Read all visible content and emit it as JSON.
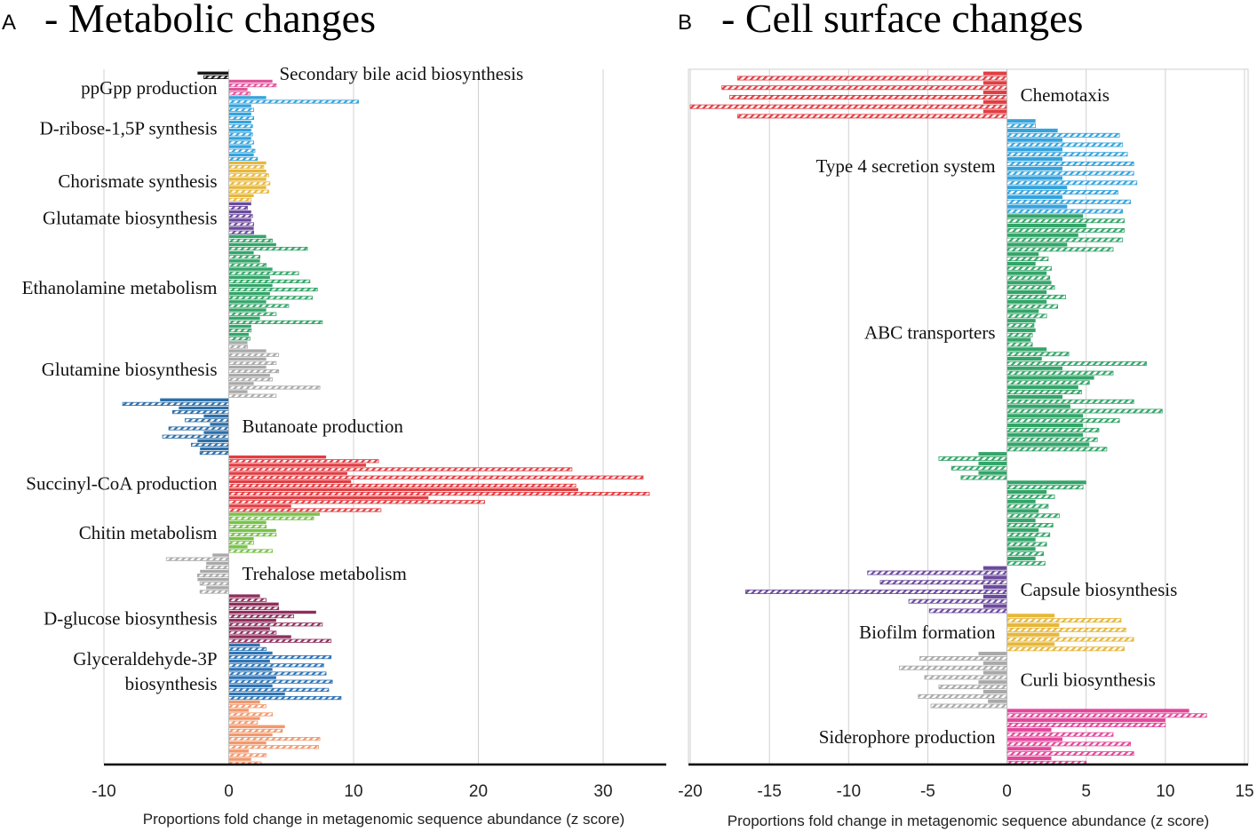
{
  "colors": {
    "black": "#1a1a1a",
    "pink": "#e0559b",
    "sky": "#35a3dc",
    "gold": "#e6b73a",
    "purple": "#6b4a9c",
    "green": "#34a569",
    "gray": "#a9a9a9",
    "steel": "#2e6fa7",
    "red": "#e23d42",
    "lime": "#78c14a",
    "maroon": "#8e2f5c",
    "blue": "#2f74b5",
    "salmon": "#f1986c",
    "pink2": "#e2479a"
  },
  "chart_data": [
    {
      "id": "A",
      "type": "bar",
      "orientation": "horizontal",
      "panel_letter": "A",
      "title": "- Metabolic changes",
      "xlabel": "Proportions  fold change in metagenomic sequence abundance (z score)",
      "xlim": [
        -10,
        35
      ],
      "xticks": [
        -10,
        0,
        10,
        20,
        30
      ],
      "grid": true,
      "groups": [
        {
          "name": "Secondary bile acid biosynthesis",
          "color": "black",
          "label_side": "right",
          "bars": [
            [
              -2.5,
              -2.0
            ]
          ]
        },
        {
          "name": "ppGpp production",
          "color": "pink",
          "label_side": "left",
          "bars": [
            [
              3.5,
              3.8
            ],
            [
              1.5,
              1.7
            ]
          ]
        },
        {
          "name": "D-ribose-1,5P synthesis",
          "color": "sky",
          "label_side": "left",
          "bars": [
            [
              3.0,
              10.4
            ],
            [
              1.8,
              2.0
            ],
            [
              1.8,
              2.0
            ],
            [
              1.8,
              1.9
            ],
            [
              1.8,
              1.9
            ],
            [
              1.8,
              2.0
            ],
            [
              1.8,
              2.1
            ],
            [
              2.0,
              2.3
            ]
          ]
        },
        {
          "name": "Chorismate synthesis",
          "color": "gold",
          "label_side": "left",
          "bars": [
            [
              3.0,
              2.8
            ],
            [
              3.0,
              3.2
            ],
            [
              3.0,
              3.3
            ],
            [
              3.0,
              3.2
            ],
            [
              2.0,
              1.8
            ]
          ]
        },
        {
          "name": "Glutamate biosynthesis",
          "color": "purple",
          "label_side": "left",
          "bars": [
            [
              1.8,
              1.5
            ],
            [
              1.8,
              1.9
            ],
            [
              1.8,
              2.0
            ],
            [
              2.0,
              2.0
            ]
          ]
        },
        {
          "name": "Ethanolamine metabolism",
          "color": "green",
          "label_side": "left",
          "bars": [
            [
              3.0,
              3.5
            ],
            [
              3.8,
              6.3
            ],
            [
              2.0,
              2.5
            ],
            [
              2.5,
              3.0
            ],
            [
              3.5,
              5.6
            ],
            [
              3.3,
              6.5
            ],
            [
              3.5,
              7.1
            ],
            [
              3.3,
              6.7
            ],
            [
              3.0,
              4.8
            ],
            [
              3.0,
              3.8
            ],
            [
              2.5,
              7.5
            ],
            [
              1.8,
              1.8
            ],
            [
              1.6,
              1.7
            ]
          ]
        },
        {
          "name": "Glutamine biosynthesis",
          "color": "gray",
          "label_side": "left",
          "bars": [
            [
              1.5,
              1.5
            ],
            [
              3.0,
              4.0
            ],
            [
              3.0,
              3.8
            ],
            [
              3.0,
              4.0
            ],
            [
              3.3,
              3.5
            ],
            [
              2.0,
              7.3
            ],
            [
              1.5,
              3.8
            ]
          ]
        },
        {
          "name": "Butanoate production",
          "color": "steel",
          "label_side": "right",
          "bars": [
            [
              -5.5,
              -8.5
            ],
            [
              -4.0,
              -4.5
            ],
            [
              -2.0,
              -3.5
            ],
            [
              -1.5,
              -4.8
            ],
            [
              -2.0,
              -5.3
            ],
            [
              -2.5,
              -3.0
            ],
            [
              -2.3,
              -2.3
            ]
          ]
        },
        {
          "name": "Succinyl-CoA production",
          "color": "red",
          "label_side": "left",
          "bars": [
            [
              7.8,
              12.0
            ],
            [
              11.0,
              27.5
            ],
            [
              9.5,
              33.2
            ],
            [
              9.8,
              27.8
            ],
            [
              28.0,
              33.7
            ],
            [
              16.0,
              20.5
            ],
            [
              5.0,
              12.2
            ]
          ]
        },
        {
          "name": "Chitin metabolism",
          "color": "lime",
          "label_side": "left",
          "bars": [
            [
              7.3,
              6.8
            ],
            [
              3.0,
              3.0
            ],
            [
              3.8,
              3.8
            ],
            [
              2.0,
              2.0
            ],
            [
              1.5,
              3.5
            ]
          ]
        },
        {
          "name": "Trehalose metabolism",
          "color": "gray",
          "label_side": "right",
          "bars": [
            [
              -1.3,
              -5.0
            ],
            [
              -1.8,
              -1.8
            ],
            [
              -2.3,
              -2.5
            ],
            [
              -2.5,
              -2.3
            ],
            [
              -1.8,
              -2.3
            ]
          ]
        },
        {
          "name": "D-glucose biosynthesis",
          "color": "maroon",
          "label_side": "left",
          "bars": [
            [
              2.5,
              3.0
            ],
            [
              4.0,
              4.0
            ],
            [
              7.0,
              5.2
            ],
            [
              3.8,
              7.5
            ],
            [
              3.3,
              3.8
            ],
            [
              5.0,
              8.2
            ]
          ]
        },
        {
          "name": "Glyceraldehyde-3P biosynthesis",
          "label_lines": [
            "Glyceraldehyde-3P",
            "biosynthesis"
          ],
          "color": "blue",
          "label_side": "left",
          "bars": [
            [
              2.5,
              3.0
            ],
            [
              3.5,
              8.2
            ],
            [
              3.3,
              7.6
            ],
            [
              3.5,
              7.8
            ],
            [
              3.8,
              8.3
            ],
            [
              3.5,
              8.0
            ],
            [
              4.5,
              9.0
            ]
          ]
        },
        {
          "name": "(unlabeled)",
          "color": "salmon",
          "label_side": "none",
          "bars": [
            [
              2.5,
              3.0
            ],
            [
              1.6,
              3.5
            ],
            [
              2.5,
              2.3
            ],
            [
              4.5,
              4.3
            ],
            [
              3.5,
              7.3
            ],
            [
              3.0,
              7.2
            ],
            [
              1.6,
              3.0
            ],
            [
              1.8,
              2.6
            ]
          ]
        }
      ]
    },
    {
      "id": "B",
      "type": "bar",
      "orientation": "horizontal",
      "panel_letter": "B",
      "title": "- Cell surface changes",
      "xlabel": "Proportions  fold change in metagenomic sequence abundance (z score)",
      "xlim": [
        -20,
        15
      ],
      "xticks": [
        -20,
        -15,
        -10,
        -5,
        0,
        5,
        10,
        15
      ],
      "grid": true,
      "groups": [
        {
          "name": "Chemotaxis",
          "color": "red",
          "label_side": "right",
          "bars": [
            [
              -1.5,
              -17.0
            ],
            [
              -1.5,
              -18.0
            ],
            [
              -1.5,
              -17.5
            ],
            [
              -1.5,
              -20.0
            ],
            [
              -1.5,
              -17.0
            ]
          ]
        },
        {
          "name": "Type 4 secretion system",
          "color": "sky",
          "label_side": "left",
          "bars": [
            [
              1.8,
              1.8
            ],
            [
              3.2,
              7.1
            ],
            [
              3.5,
              7.3
            ],
            [
              3.5,
              7.6
            ],
            [
              3.5,
              8.0
            ],
            [
              3.5,
              8.0
            ],
            [
              3.5,
              8.2
            ],
            [
              3.8,
              7.0
            ],
            [
              3.5,
              7.8
            ],
            [
              3.8,
              7.3
            ]
          ]
        },
        {
          "name": "ABC transporters",
          "color": "green",
          "label_side": "left",
          "bars": [
            [
              4.8,
              7.4
            ],
            [
              5.0,
              7.4
            ],
            [
              4.5,
              7.3
            ],
            [
              3.8,
              6.7
            ],
            [
              2.0,
              2.6
            ],
            [
              1.8,
              2.8
            ],
            [
              2.5,
              2.7
            ],
            [
              2.8,
              3.0
            ],
            [
              2.5,
              3.7
            ],
            [
              2.5,
              3.2
            ],
            [
              2.0,
              2.5
            ],
            [
              1.8,
              1.7
            ],
            [
              1.8,
              1.6
            ],
            [
              1.5,
              1.6
            ],
            [
              2.5,
              3.9
            ],
            [
              2.2,
              8.8
            ],
            [
              3.5,
              6.7
            ],
            [
              5.5,
              5.2
            ],
            [
              4.5,
              4.7
            ],
            [
              3.5,
              8.0
            ],
            [
              4.0,
              9.8
            ],
            [
              4.8,
              7.1
            ],
            [
              4.8,
              5.8
            ],
            [
              4.8,
              5.7
            ],
            [
              5.2,
              6.3
            ]
          ]
        },
        {
          "name": "(unlabeled)",
          "color": "green",
          "label_side": "none",
          "bars": [
            [
              -1.8,
              -4.3
            ],
            [
              -1.8,
              -3.5
            ],
            [
              -1.8,
              -2.9
            ]
          ]
        },
        {
          "name": "(unlabeled)",
          "color": "green",
          "label_side": "none",
          "bars": [
            [
              5.0,
              4.8
            ],
            [
              2.5,
              3.0
            ],
            [
              1.8,
              2.6
            ],
            [
              2.0,
              3.3
            ],
            [
              1.8,
              2.9
            ],
            [
              2.0,
              2.7
            ],
            [
              1.8,
              2.5
            ],
            [
              1.8,
              2.3
            ],
            [
              1.8,
              2.4
            ]
          ]
        },
        {
          "name": "Capsule biosynthesis",
          "color": "purple",
          "label_side": "right",
          "bars": [
            [
              -1.5,
              -8.8
            ],
            [
              -1.5,
              -8.0
            ],
            [
              -1.5,
              -16.5
            ],
            [
              -1.5,
              -6.2
            ],
            [
              -1.5,
              -4.9
            ]
          ]
        },
        {
          "name": "Biofilm formation",
          "color": "gold",
          "label_side": "left",
          "bars": [
            [
              3.0,
              7.2
            ],
            [
              3.3,
              7.5
            ],
            [
              3.3,
              8.0
            ],
            [
              3.0,
              7.4
            ]
          ]
        },
        {
          "name": "Curli biosynthesis",
          "color": "gray",
          "label_side": "right",
          "bars": [
            [
              -1.8,
              -5.5
            ],
            [
              -1.5,
              -6.8
            ],
            [
              -1.5,
              -5.2
            ],
            [
              -1.8,
              -4.3
            ],
            [
              -1.5,
              -5.6
            ],
            [
              -1.2,
              -4.8
            ]
          ]
        },
        {
          "name": "Siderophore production",
          "color": "pink2",
          "label_side": "left",
          "bars": [
            [
              11.5,
              12.6
            ],
            [
              10.0,
              10.0
            ],
            [
              2.8,
              6.7
            ],
            [
              3.5,
              7.8
            ],
            [
              2.8,
              8.0
            ],
            [
              2.8,
              5.0
            ]
          ]
        }
      ]
    }
  ]
}
